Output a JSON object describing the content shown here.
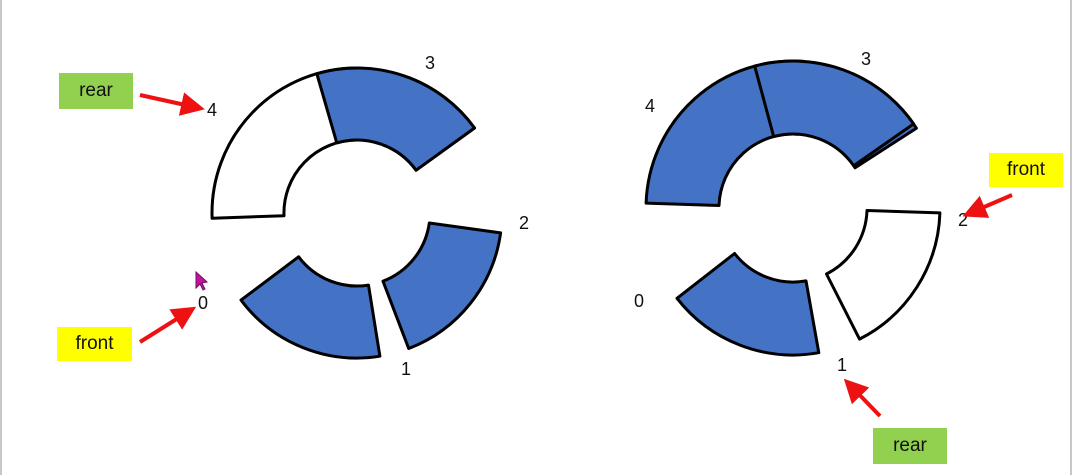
{
  "colors": {
    "filled": "#4472c4",
    "empty": "#ffffff",
    "outline": "#000000",
    "arrow": "#ee1111",
    "rear_tag": "#92d050",
    "front_tag": "#ffff00",
    "cursor": "#c0149e"
  },
  "queues": [
    {
      "slots": [
        {
          "index": "0",
          "filled": false
        },
        {
          "index": "1",
          "filled": true
        },
        {
          "index": "2",
          "filled": true
        },
        {
          "index": "3",
          "filled": true
        },
        {
          "index": "4",
          "filled": true
        }
      ],
      "rear_label": "rear",
      "front_label": "front"
    },
    {
      "slots": [
        {
          "index": "0",
          "filled": true
        },
        {
          "index": "1",
          "filled": true
        },
        {
          "index": "2",
          "filled": false
        },
        {
          "index": "3",
          "filled": true
        },
        {
          "index": "4",
          "filled": true
        }
      ],
      "rear_label": "rear",
      "front_label": "front"
    }
  ],
  "cursor_icon": "pointer-arrow-icon"
}
